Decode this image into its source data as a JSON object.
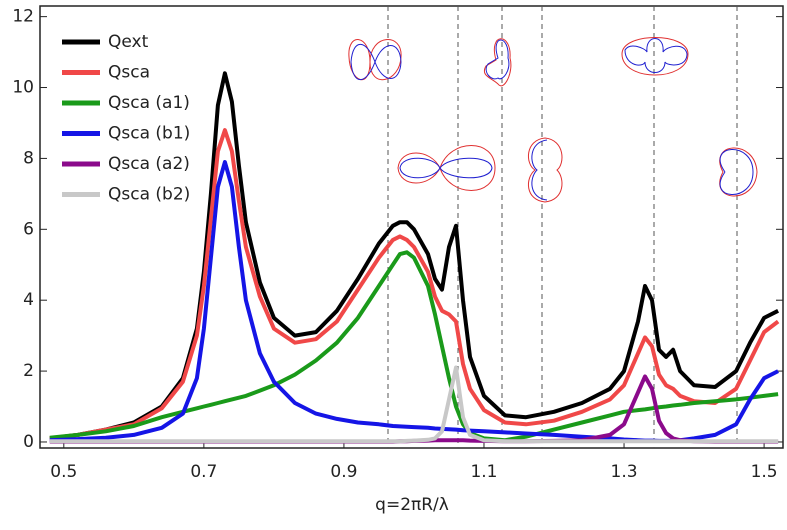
{
  "chart_data": {
    "type": "line",
    "x_label": "q=2πR/λ",
    "x": [
      0.48,
      0.52,
      0.56,
      0.6,
      0.64,
      0.67,
      0.69,
      0.7,
      0.71,
      0.72,
      0.73,
      0.74,
      0.75,
      0.76,
      0.78,
      0.8,
      0.83,
      0.86,
      0.89,
      0.92,
      0.95,
      0.97,
      0.98,
      0.99,
      1.0,
      1.02,
      1.03,
      1.04,
      1.05,
      1.06,
      1.07,
      1.08,
      1.1,
      1.13,
      1.16,
      1.2,
      1.24,
      1.28,
      1.3,
      1.32,
      1.33,
      1.34,
      1.35,
      1.36,
      1.37,
      1.38,
      1.4,
      1.43,
      1.46,
      1.48,
      1.5,
      1.52
    ],
    "series": [
      {
        "name": "Qext",
        "color": "#000000",
        "values": [
          0.1,
          0.2,
          0.35,
          0.55,
          1.0,
          1.8,
          3.2,
          4.8,
          7.0,
          9.5,
          10.4,
          9.6,
          7.8,
          6.2,
          4.5,
          3.5,
          3.0,
          3.1,
          3.7,
          4.6,
          5.6,
          6.1,
          6.2,
          6.2,
          6.0,
          5.3,
          4.6,
          4.3,
          5.5,
          6.1,
          4.0,
          2.4,
          1.3,
          0.75,
          0.7,
          0.85,
          1.1,
          1.5,
          2.0,
          3.4,
          4.4,
          4.0,
          2.6,
          2.4,
          2.6,
          2.0,
          1.6,
          1.55,
          2.0,
          2.8,
          3.5,
          3.7
        ]
      },
      {
        "name": "Qsca",
        "color": "#f04848",
        "values": [
          0.1,
          0.2,
          0.35,
          0.5,
          0.95,
          1.7,
          3.0,
          4.4,
          6.3,
          8.2,
          8.8,
          8.2,
          6.8,
          5.5,
          4.1,
          3.2,
          2.8,
          2.9,
          3.4,
          4.3,
          5.2,
          5.7,
          5.8,
          5.7,
          5.5,
          4.8,
          4.1,
          3.7,
          3.6,
          3.4,
          2.2,
          1.5,
          0.9,
          0.55,
          0.5,
          0.6,
          0.85,
          1.2,
          1.6,
          2.5,
          2.95,
          2.7,
          1.9,
          1.6,
          1.5,
          1.3,
          1.15,
          1.1,
          1.5,
          2.3,
          3.1,
          3.4
        ]
      },
      {
        "name": "Qsca (a1)",
        "color": "#1a9a1a",
        "values": [
          0.12,
          0.2,
          0.3,
          0.45,
          0.7,
          0.85,
          0.95,
          1.0,
          1.05,
          1.1,
          1.15,
          1.2,
          1.25,
          1.3,
          1.45,
          1.6,
          1.9,
          2.3,
          2.8,
          3.5,
          4.4,
          5.0,
          5.3,
          5.35,
          5.2,
          4.4,
          3.6,
          2.7,
          1.8,
          1.0,
          0.5,
          0.25,
          0.1,
          0.05,
          0.15,
          0.35,
          0.55,
          0.75,
          0.85,
          0.9,
          0.92,
          0.95,
          0.98,
          1.0,
          1.03,
          1.05,
          1.1,
          1.15,
          1.2,
          1.25,
          1.3,
          1.35
        ]
      },
      {
        "name": "Qsca (b1)",
        "color": "#1515e6",
        "values": [
          0.05,
          0.08,
          0.12,
          0.2,
          0.4,
          0.8,
          1.8,
          3.2,
          5.2,
          7.2,
          7.9,
          7.2,
          5.5,
          4.0,
          2.5,
          1.7,
          1.1,
          0.8,
          0.65,
          0.55,
          0.5,
          0.45,
          0.44,
          0.43,
          0.42,
          0.4,
          0.38,
          0.37,
          0.36,
          0.35,
          0.33,
          0.32,
          0.3,
          0.27,
          0.24,
          0.2,
          0.15,
          0.1,
          0.07,
          0.05,
          0.04,
          0.04,
          0.03,
          0.03,
          0.03,
          0.05,
          0.1,
          0.2,
          0.5,
          1.2,
          1.8,
          2.0
        ]
      },
      {
        "name": "Qsca (a2)",
        "color": "#8b0a8b",
        "values": [
          0.01,
          0.01,
          0.01,
          0.01,
          0.01,
          0.01,
          0.01,
          0.01,
          0.01,
          0.01,
          0.01,
          0.01,
          0.01,
          0.01,
          0.01,
          0.01,
          0.01,
          0.01,
          0.01,
          0.01,
          0.01,
          0.01,
          0.02,
          0.02,
          0.03,
          0.04,
          0.05,
          0.05,
          0.05,
          0.05,
          0.05,
          0.04,
          0.03,
          0.02,
          0.02,
          0.03,
          0.05,
          0.2,
          0.5,
          1.4,
          1.85,
          1.5,
          0.6,
          0.25,
          0.1,
          0.05,
          0.02,
          0.01,
          0.01,
          0.01,
          0.01,
          0.01
        ]
      },
      {
        "name": "Qsca (b2)",
        "color": "#c8c8c8",
        "values": [
          0.02,
          0.02,
          0.02,
          0.02,
          0.02,
          0.02,
          0.02,
          0.02,
          0.02,
          0.02,
          0.02,
          0.02,
          0.02,
          0.02,
          0.02,
          0.02,
          0.02,
          0.02,
          0.02,
          0.02,
          0.02,
          0.02,
          0.02,
          0.03,
          0.04,
          0.06,
          0.1,
          0.3,
          1.2,
          2.1,
          0.7,
          0.2,
          0.05,
          0.02,
          0.02,
          0.02,
          0.02,
          0.02,
          0.02,
          0.02,
          0.02,
          0.02,
          0.02,
          0.02,
          0.02,
          0.02,
          0.02,
          0.02,
          0.02,
          0.02,
          0.02,
          0.02
        ]
      }
    ],
    "xlim": [
      0.466,
      1.527
    ],
    "ylim": [
      -0.17,
      12.3
    ],
    "xticks": [
      0.5,
      0.7,
      0.9,
      1.1,
      1.3,
      1.5
    ],
    "yticks": [
      0,
      2,
      4,
      6,
      8,
      10,
      12
    ]
  }
}
